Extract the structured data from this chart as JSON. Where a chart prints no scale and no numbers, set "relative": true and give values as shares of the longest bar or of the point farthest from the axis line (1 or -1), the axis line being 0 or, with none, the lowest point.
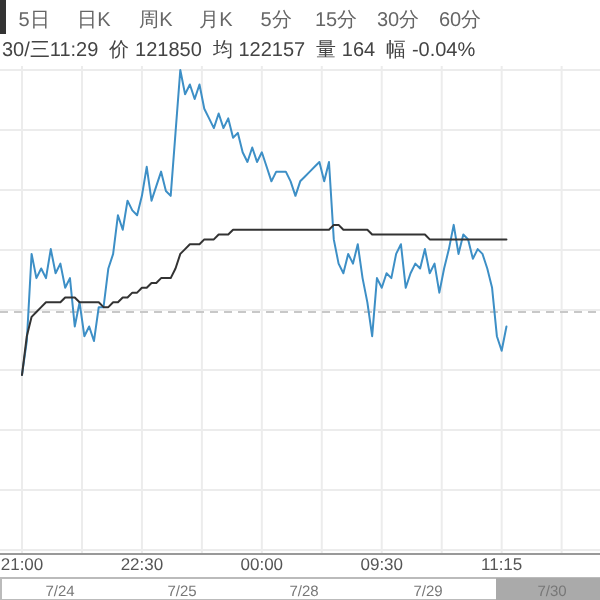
{
  "chart_data": {
    "type": "line",
    "relative": true,
    "grid": true,
    "categories": [
      "21:00",
      null,
      null,
      null,
      null,
      null,
      null,
      null,
      null,
      null,
      null,
      null,
      null,
      null,
      null,
      null,
      null,
      null,
      null,
      null,
      null,
      null,
      null,
      null,
      null,
      "22:30",
      null,
      null,
      null,
      null,
      null,
      null,
      null,
      null,
      null,
      null,
      null,
      null,
      null,
      null,
      null,
      null,
      null,
      null,
      null,
      null,
      null,
      null,
      null,
      null,
      "00:00",
      null,
      null,
      null,
      null,
      null,
      null,
      null,
      null,
      null,
      null,
      null,
      null,
      null,
      null,
      null,
      null,
      null,
      null,
      null,
      null,
      null,
      null,
      null,
      null,
      "09:30",
      null,
      null,
      null,
      null,
      null,
      null,
      null,
      null,
      null,
      null,
      null,
      null,
      null,
      null,
      null,
      null,
      null,
      null,
      null,
      null,
      null,
      null,
      null,
      null,
      "11:15",
      null,
      null,
      null,
      null,
      null,
      null,
      null,
      null,
      null,
      null,
      null,
      null,
      null,
      null,
      null,
      null,
      null,
      null,
      null,
      null
    ],
    "series": [
      {
        "type": "line",
        "color": "#3d8fc6",
        "values": [
          0.37,
          0.44,
          0.62,
          0.57,
          0.59,
          0.57,
          0.63,
          0.58,
          0.6,
          0.55,
          0.57,
          0.47,
          0.52,
          0.45,
          0.47,
          0.44,
          0.51,
          0.51,
          0.59,
          0.62,
          0.7,
          0.67,
          0.73,
          0.71,
          0.7,
          0.74,
          0.8,
          0.73,
          0.76,
          0.79,
          0.75,
          0.74,
          0.87,
          1,
          0.95,
          0.97,
          0.94,
          0.97,
          0.92,
          0.9,
          0.88,
          0.91,
          0.88,
          0.9,
          0.86,
          0.87,
          0.83,
          0.81,
          0.84,
          0.81,
          0.83,
          0.8,
          0.77,
          0.79,
          0.79,
          0.79,
          0.77,
          0.74,
          0.77,
          0.78,
          0.79,
          0.8,
          0.81,
          0.77,
          0.81,
          0.65,
          0.6,
          0.58,
          0.62,
          0.6,
          0.64,
          0.57,
          0.52,
          0.45,
          0.57,
          0.55,
          0.58,
          0.57,
          0.62,
          0.64,
          0.55,
          0.58,
          0.6,
          0.59,
          0.63,
          0.58,
          0.6,
          0.54,
          0.59,
          0.63,
          0.68,
          0.62,
          0.66,
          0.65,
          0.61,
          0.63,
          0.62,
          0.59,
          0.55,
          0.45,
          0.42,
          0.47,
          null,
          null,
          null,
          null,
          null,
          null,
          null,
          null,
          null,
          null,
          null,
          null,
          null,
          null,
          null,
          null,
          null,
          null,
          null
        ]
      },
      {
        "type": "line",
        "color": "#333333",
        "values": [
          0.37,
          0.45,
          0.49,
          0.5,
          0.51,
          0.52,
          0.52,
          0.52,
          0.52,
          0.53,
          0.53,
          0.53,
          0.52,
          0.52,
          0.52,
          0.52,
          0.52,
          0.51,
          0.51,
          0.52,
          0.52,
          0.53,
          0.53,
          0.54,
          0.54,
          0.55,
          0.55,
          0.56,
          0.56,
          0.57,
          0.57,
          0.57,
          0.59,
          0.62,
          0.63,
          0.64,
          0.64,
          0.64,
          0.65,
          0.65,
          0.65,
          0.66,
          0.66,
          0.66,
          0.67,
          0.67,
          0.67,
          0.67,
          0.67,
          0.67,
          0.67,
          0.67,
          0.67,
          0.67,
          0.67,
          0.67,
          0.67,
          0.67,
          0.67,
          0.67,
          0.67,
          0.67,
          0.67,
          0.67,
          0.67,
          0.68,
          0.68,
          0.67,
          0.67,
          0.67,
          0.67,
          0.67,
          0.67,
          0.66,
          0.66,
          0.66,
          0.66,
          0.66,
          0.66,
          0.66,
          0.66,
          0.66,
          0.66,
          0.66,
          0.66,
          0.65,
          0.65,
          0.65,
          0.65,
          0.65,
          0.65,
          0.65,
          0.65,
          0.65,
          0.65,
          0.65,
          0.65,
          0.65,
          0.65,
          0.65,
          0.65,
          0.65,
          null,
          null,
          null,
          null,
          null,
          null,
          null,
          null,
          null,
          null,
          null,
          null,
          null,
          null,
          null,
          null,
          null,
          null,
          null
        ]
      }
    ],
    "ref_lines": [
      {
        "axis": "y",
        "value": 0.5,
        "line_style": "dashed",
        "color": "#c8c8c8"
      }
    ],
    "annotations": [
      "5日",
      "日K",
      "周K",
      "月K",
      "5分",
      "15分",
      "30分",
      "60分",
      "30/三11:29  价 121850  均 122157  量 164  幅 -0.04%",
      "7/24",
      "7/25",
      "7/28",
      "7/29",
      "7/30"
    ]
  }
}
